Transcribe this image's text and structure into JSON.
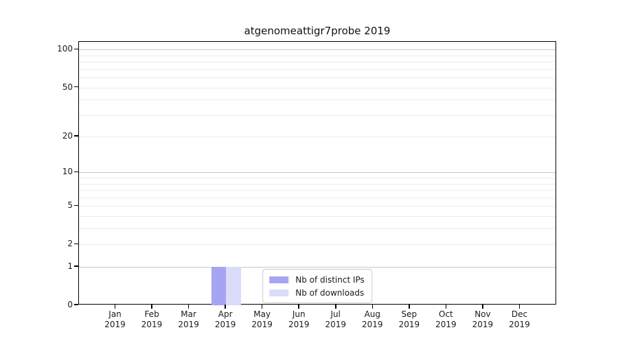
{
  "chart_data": {
    "type": "bar",
    "title": "atgenomeattigr7probe 2019",
    "categories": [
      "Jan",
      "Feb",
      "Mar",
      "Apr",
      "May",
      "Jun",
      "Jul",
      "Aug",
      "Sep",
      "Oct",
      "Nov",
      "Dec"
    ],
    "year_label": "2019",
    "series": [
      {
        "id": "distinct-ips",
        "name": "Nb of distinct IPs",
        "color": "#a5a5f2",
        "values": [
          0,
          0,
          0,
          1,
          0,
          0,
          0,
          0,
          0,
          0,
          0,
          0
        ]
      },
      {
        "id": "downloads",
        "name": "Nb of downloads",
        "color": "#dbdbfa",
        "values": [
          0,
          0,
          0,
          1,
          0,
          0,
          0,
          0,
          0,
          0,
          0,
          0
        ]
      }
    ],
    "y_axis": {
      "scale": "log1p",
      "ticks": [
        0,
        1,
        2,
        5,
        10,
        20,
        50,
        100
      ],
      "major_gridlines": [
        1,
        10,
        100
      ],
      "minor_gridlines": [
        2,
        3,
        4,
        5,
        6,
        7,
        8,
        9,
        20,
        30,
        40,
        50,
        60,
        70,
        80,
        90
      ],
      "max": 115.3
    },
    "xlabel": "",
    "ylabel": "",
    "grid": {
      "major_color": "#c8c8c8",
      "minor_color": "#ececec"
    },
    "legend": {
      "position": "lower center"
    },
    "bar_width_fraction": 0.4
  }
}
